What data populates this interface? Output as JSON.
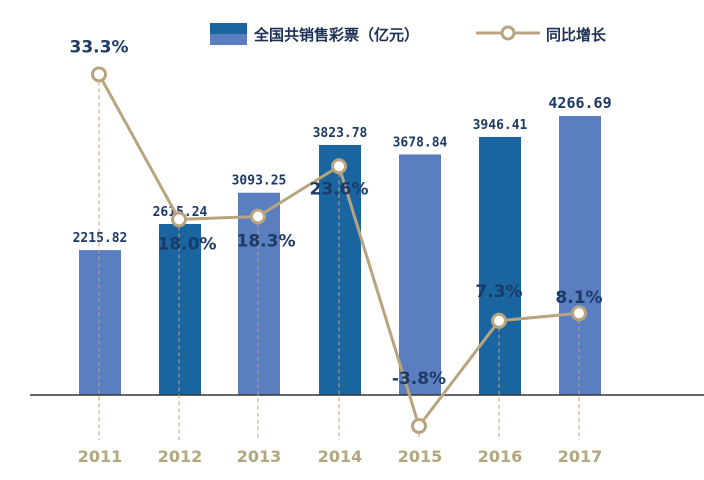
{
  "chart_data": {
    "type": "bar+line",
    "categories": [
      "2011",
      "2012",
      "2013",
      "2014",
      "2015",
      "2016",
      "2017"
    ],
    "series": [
      {
        "name": "全国共销售彩票（亿元）",
        "type": "bar",
        "values": [
          2215.82,
          2615.24,
          3093.25,
          3823.78,
          3678.84,
          3946.41,
          4266.69
        ],
        "labels": [
          "2215.82",
          "2615.24",
          "3093.25",
          "3823.78",
          "3678.84",
          "3946.41",
          "4266.69"
        ]
      },
      {
        "name": "同比增长",
        "type": "line",
        "values": [
          33.3,
          18.0,
          18.3,
          23.6,
          -3.8,
          7.3,
          8.1
        ],
        "labels": [
          "33.3%",
          "18.0%",
          "18.3%",
          "23.6%",
          "-3.8%",
          "7.3%",
          "8.1%"
        ]
      }
    ],
    "colors": {
      "bar_dark": "#1a64a0",
      "bar_light": "#5b7ec0",
      "line": "#b8a47e",
      "axis_label": "#b3a57c",
      "bar_label": "#1c3a66",
      "line_label": "#1c3a66"
    },
    "legend": "top",
    "grid": false
  }
}
